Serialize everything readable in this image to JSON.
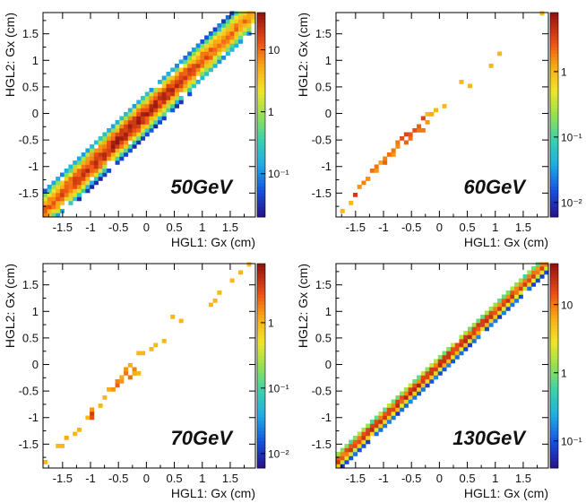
{
  "chart_data": [
    {
      "type": "heatmap",
      "title": "50GeV",
      "xlabel": "HGL1: Gx (cm)",
      "ylabel": "HGL2: Gx (cm)",
      "xlim": [
        -1.85,
        1.95
      ],
      "ylim": [
        -1.95,
        1.9
      ],
      "xticks": [
        "-1.5",
        "-1",
        "-0.5",
        "0",
        "0.5",
        "1",
        "1.5"
      ],
      "yticks": [
        "-1.5",
        "-1",
        "-0.5",
        "0",
        "0.5",
        "1",
        "1.5"
      ],
      "zlim": [
        0.02,
        40
      ],
      "zticks": [
        {
          "value": 10,
          "label": "10"
        },
        {
          "value": 1,
          "label": "1"
        },
        {
          "value": 0.1,
          "label": "10⁻¹"
        }
      ],
      "bin_width": 0.076,
      "band": {
        "width": 0.25,
        "peak": 30,
        "peak_center": -0.3,
        "peak_spread": 1.1
      },
      "points": []
    },
    {
      "type": "heatmap",
      "title": "60GeV",
      "xlabel": "HGL1: Gx (cm)",
      "ylabel": "HGL2: Gx (cm)",
      "xlim": [
        -1.85,
        1.95
      ],
      "ylim": [
        -1.95,
        1.9
      ],
      "xticks": [
        "-1.5",
        "-1",
        "-0.5",
        "0",
        "0.5",
        "1",
        "1.5"
      ],
      "yticks": [
        "-1.5",
        "-1",
        "-0.5",
        "0",
        "0.5",
        "1",
        "1.5"
      ],
      "ytick_override": {
        "1.5": "1:5"
      },
      "zlim": [
        0.006,
        8
      ],
      "zticks": [
        {
          "value": 1,
          "label": "1"
        },
        {
          "value": 0.1,
          "label": "10⁻¹"
        },
        {
          "value": 0.01,
          "label": "10⁻²"
        }
      ],
      "bin_width": 0.076,
      "band": null,
      "points": [
        [
          -1.75,
          -1.85,
          1.0
        ],
        [
          -1.62,
          -1.7,
          1.0
        ],
        [
          -1.5,
          -1.5,
          4.0
        ],
        [
          -1.45,
          -1.4,
          1.5
        ],
        [
          -1.38,
          -1.32,
          1.8
        ],
        [
          -1.3,
          -1.25,
          2.0
        ],
        [
          -1.25,
          -1.2,
          1.5
        ],
        [
          -1.2,
          -1.1,
          2.2
        ],
        [
          -1.15,
          -1.05,
          1.5
        ],
        [
          -1.1,
          -1.0,
          2.0
        ],
        [
          -1.05,
          -0.95,
          1.3
        ],
        [
          -1.0,
          -0.9,
          2.5
        ],
        [
          -0.95,
          -0.85,
          1.8
        ],
        [
          -0.9,
          -0.8,
          2.2
        ],
        [
          -0.85,
          -0.78,
          1.5
        ],
        [
          -0.8,
          -0.7,
          2.0
        ],
        [
          -0.75,
          -0.62,
          1.6
        ],
        [
          -0.72,
          -0.55,
          2.0
        ],
        [
          -0.68,
          -0.5,
          3.0
        ],
        [
          -0.62,
          -0.52,
          2.5
        ],
        [
          -0.58,
          -0.42,
          3.5
        ],
        [
          -0.55,
          -0.45,
          2.2
        ],
        [
          -0.5,
          -0.38,
          2.8
        ],
        [
          -0.45,
          -0.32,
          3.2
        ],
        [
          -0.4,
          -0.28,
          2.0
        ],
        [
          -0.35,
          -0.22,
          2.6
        ],
        [
          -0.3,
          -0.12,
          3.5
        ],
        [
          -0.32,
          -0.3,
          2.0
        ],
        [
          -0.25,
          -0.15,
          1.5
        ],
        [
          -0.2,
          0.0,
          1.0
        ],
        [
          -0.15,
          -0.05,
          1.2
        ],
        [
          -0.08,
          0.05,
          1.0
        ],
        [
          0.05,
          0.12,
          1.0
        ],
        [
          0.4,
          0.6,
          1.0
        ],
        [
          0.55,
          0.55,
          1.0
        ],
        [
          0.9,
          0.92,
          1.0
        ],
        [
          1.05,
          1.1,
          1.0
        ],
        [
          1.85,
          1.92,
          1.0
        ]
      ]
    },
    {
      "type": "heatmap",
      "title": "70GeV",
      "xlabel": "HGL1: Gx (cm)",
      "ylabel": "HGL2: Gx (cm)",
      "xlim": [
        -1.85,
        1.95
      ],
      "ylim": [
        -1.95,
        1.9
      ],
      "xticks": [
        "-1.5",
        "-1",
        "-0.5",
        "0",
        "0.5",
        "1",
        "1.5"
      ],
      "yticks": [
        "-1.5",
        "-1",
        "-0.5",
        "0",
        "0.5",
        "1",
        "1.5"
      ],
      "zlim": [
        0.006,
        8
      ],
      "zticks": [
        {
          "value": 1,
          "label": "1"
        },
        {
          "value": 0.1,
          "label": "10⁻¹"
        },
        {
          "value": 0.01,
          "label": "10⁻²"
        }
      ],
      "bin_width": 0.076,
      "band": null,
      "points": [
        [
          -1.8,
          -1.8,
          1.0
        ],
        [
          -1.55,
          -1.55,
          1.0
        ],
        [
          -1.48,
          -1.55,
          1.0
        ],
        [
          -1.4,
          -1.4,
          1.2
        ],
        [
          -1.3,
          -1.3,
          1.0
        ],
        [
          -1.2,
          -1.2,
          1.0
        ],
        [
          -1.05,
          -1.0,
          1.0
        ],
        [
          -1.0,
          -0.92,
          4.0
        ],
        [
          -0.98,
          -1.02,
          3.0
        ],
        [
          -0.95,
          -0.88,
          1.5
        ],
        [
          -0.85,
          -0.78,
          1.0
        ],
        [
          -0.75,
          -0.65,
          1.0
        ],
        [
          -0.7,
          -0.5,
          1.2
        ],
        [
          -0.62,
          -0.45,
          1.5
        ],
        [
          -0.55,
          -0.42,
          2.5
        ],
        [
          -0.5,
          -0.35,
          1.8
        ],
        [
          -0.45,
          -0.3,
          1.5
        ],
        [
          -0.42,
          -0.22,
          1.2
        ],
        [
          -0.38,
          -0.18,
          2.0
        ],
        [
          -0.35,
          -0.1,
          1.5
        ],
        [
          -0.3,
          -0.25,
          2.2
        ],
        [
          -0.28,
          -0.05,
          1.2
        ],
        [
          -0.25,
          -0.18,
          1.5
        ],
        [
          -0.22,
          -0.08,
          1.8
        ],
        [
          -0.18,
          -0.15,
          1.2
        ],
        [
          -0.12,
          -0.2,
          1.0
        ],
        [
          -0.15,
          0.2,
          1.0
        ],
        [
          -0.08,
          0.25,
          1.0
        ],
        [
          0.05,
          0.3,
          1.0
        ],
        [
          0.2,
          0.38,
          1.0
        ],
        [
          0.35,
          0.45,
          1.0
        ],
        [
          0.5,
          0.88,
          1.0
        ],
        [
          0.6,
          0.8,
          1.0
        ],
        [
          1.12,
          1.1,
          1.0
        ],
        [
          1.2,
          1.22,
          1.0
        ],
        [
          1.3,
          1.35,
          1.0
        ],
        [
          1.55,
          1.55,
          1.0
        ],
        [
          1.7,
          1.72,
          1.0
        ],
        [
          1.82,
          1.85,
          1.0
        ]
      ]
    },
    {
      "type": "heatmap",
      "title": "130GeV",
      "xlabel": "HGL1: Gx (cm)",
      "ylabel": "HGL2: Gx (cm)",
      "xlim": [
        -1.85,
        1.95
      ],
      "ylim": [
        -1.95,
        1.9
      ],
      "xticks": [
        "-1.5",
        "-1",
        "-0.5",
        "0",
        "0.5",
        "1",
        "1.5"
      ],
      "yticks": [
        "-1.5",
        "-1",
        "-0.5",
        "0",
        "0.5",
        "1",
        "1.5"
      ],
      "ytick_override": {
        "1.5": "1:5"
      },
      "zlim": [
        0.04,
        40
      ],
      "zticks": [
        {
          "value": 10,
          "label": "10"
        },
        {
          "value": 1,
          "label": "1"
        },
        {
          "value": 0.1,
          "label": "10⁻¹"
        }
      ],
      "bin_width": 0.076,
      "band": {
        "width": 0.12,
        "peak": 25,
        "peak_center": 0.0,
        "peak_spread": 2.5
      },
      "points": []
    }
  ]
}
